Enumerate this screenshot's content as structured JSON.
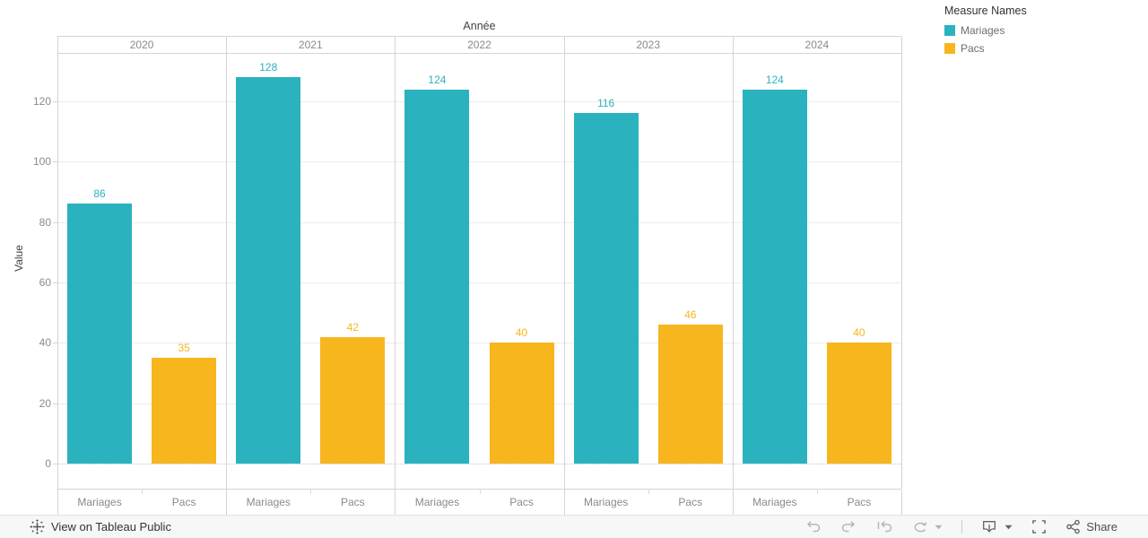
{
  "chart_data": {
    "type": "bar",
    "title": "Année",
    "ylabel": "Value",
    "categories": [
      "2020",
      "2021",
      "2022",
      "2023",
      "2024"
    ],
    "subcategories": [
      "Mariages",
      "Pacs"
    ],
    "series": [
      {
        "name": "Mariages",
        "color": "#2AB2BE",
        "values": [
          86,
          128,
          124,
          116,
          124
        ]
      },
      {
        "name": "Pacs",
        "color": "#F7B61E",
        "values": [
          35,
          42,
          40,
          46,
          40
        ]
      }
    ],
    "ylim": [
      0,
      135
    ],
    "yticks": [
      0,
      20,
      40,
      60,
      80,
      100,
      120
    ],
    "grid": true,
    "legend_position": "top-right",
    "zero_line_style": "dotted"
  },
  "legend": {
    "title": "Measure Names",
    "items": [
      {
        "label": "Mariages",
        "color": "#2AB2BE"
      },
      {
        "label": "Pacs",
        "color": "#F7B61E"
      }
    ]
  },
  "toolbar": {
    "view_link": "View on Tableau Public",
    "share_label": "Share",
    "icons": [
      "tableau-logo-icon",
      "undo-icon",
      "redo-icon",
      "revert-icon",
      "refresh-icon",
      "caret-down-icon",
      "download-icon",
      "fullscreen-icon",
      "share-icon"
    ]
  },
  "colors": {
    "mariages": "#2AB2BE",
    "pacs": "#F7B61E",
    "axis_text": "#8a8a8a",
    "frame_line": "#d4d4d4",
    "gridline": "#ececec",
    "toolbar_bg": "#f7f7f7"
  }
}
